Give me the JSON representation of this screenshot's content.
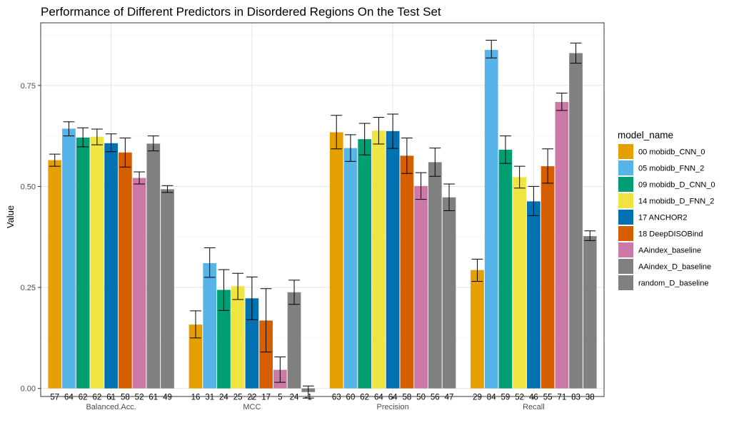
{
  "chart_data": {
    "type": "bar",
    "title": "Performance of Different Predictors in Disordered Regions On the Test Set",
    "xlabel": "",
    "ylabel": "Value",
    "ylim": [
      -0.02,
      0.905
    ],
    "yticks": [
      0.0,
      0.25,
      0.5,
      0.75
    ],
    "ytick_labels": [
      "0.00",
      "0.25",
      "0.50",
      "0.75"
    ],
    "grid": true,
    "legend_title": "model_name",
    "legend_position": "right",
    "categories": [
      "Balanced.Acc.",
      "MCC",
      "Precision",
      "Recall"
    ],
    "series": [
      {
        "name": "00 mobidb_CNN_0",
        "color": "#E69F00",
        "values": [
          0.565,
          0.158,
          0.634,
          0.293
        ],
        "err_low": [
          0.55,
          0.125,
          0.593,
          0.265
        ],
        "err_high": [
          0.58,
          0.192,
          0.676,
          0.32
        ],
        "labels": [
          "57",
          "16",
          "63",
          "29"
        ]
      },
      {
        "name": "05 mobidb_FNN_2",
        "color": "#56B4E9",
        "values": [
          0.643,
          0.31,
          0.595,
          0.838
        ],
        "err_low": [
          0.625,
          0.275,
          0.562,
          0.818
        ],
        "err_high": [
          0.66,
          0.348,
          0.628,
          0.862
        ],
        "labels": [
          "64",
          "31",
          "60",
          "84"
        ]
      },
      {
        "name": "09 mobidb_D_CNN_0",
        "color": "#009E73",
        "values": [
          0.621,
          0.244,
          0.617,
          0.591
        ],
        "err_low": [
          0.598,
          0.193,
          0.578,
          0.557
        ],
        "err_high": [
          0.645,
          0.294,
          0.656,
          0.625
        ],
        "labels": [
          "62",
          "24",
          "62",
          "59"
        ]
      },
      {
        "name": "14 mobidb_D_FNN_2",
        "color": "#F0E442",
        "values": [
          0.623,
          0.253,
          0.638,
          0.523
        ],
        "err_low": [
          0.603,
          0.22,
          0.605,
          0.496
        ],
        "err_high": [
          0.642,
          0.285,
          0.671,
          0.55
        ],
        "labels": [
          "62",
          "25",
          "64",
          "52"
        ]
      },
      {
        "name": "17 ANCHOR2",
        "color": "#0072B2",
        "values": [
          0.607,
          0.223,
          0.637,
          0.463
        ],
        "err_low": [
          0.586,
          0.17,
          0.594,
          0.428
        ],
        "err_high": [
          0.63,
          0.276,
          0.679,
          0.5
        ],
        "labels": [
          "61",
          "22",
          "64",
          "46"
        ]
      },
      {
        "name": "18 DeepDISOBind",
        "color": "#D55E00",
        "values": [
          0.584,
          0.168,
          0.576,
          0.55
        ],
        "err_low": [
          0.548,
          0.09,
          0.532,
          0.508
        ],
        "err_high": [
          0.62,
          0.247,
          0.62,
          0.593
        ],
        "labels": [
          "58",
          "17",
          "58",
          "55"
        ]
      },
      {
        "name": "AAindex_baseline",
        "color": "#CC79A7",
        "values": [
          0.521,
          0.046,
          0.501,
          0.709
        ],
        "err_low": [
          0.506,
          0.015,
          0.468,
          0.688
        ],
        "err_high": [
          0.536,
          0.078,
          0.534,
          0.731
        ],
        "labels": [
          "52",
          "5",
          "50",
          "71"
        ]
      },
      {
        "name": "AAindex_D_baseline",
        "color": "#808080",
        "values": [
          0.606,
          0.238,
          0.56,
          0.83
        ],
        "err_low": [
          0.588,
          0.208,
          0.525,
          0.805
        ],
        "err_high": [
          0.625,
          0.268,
          0.595,
          0.855
        ],
        "labels": [
          "61",
          "24",
          "56",
          "83"
        ]
      },
      {
        "name": "random_D_baseline",
        "color": "#808080",
        "values": [
          0.493,
          -0.009,
          0.473,
          0.377
        ],
        "err_low": [
          0.485,
          -0.024,
          0.44,
          0.366
        ],
        "err_high": [
          0.502,
          0.006,
          0.506,
          0.39
        ],
        "labels": [
          "49",
          "-1",
          "47",
          "38"
        ]
      }
    ]
  }
}
